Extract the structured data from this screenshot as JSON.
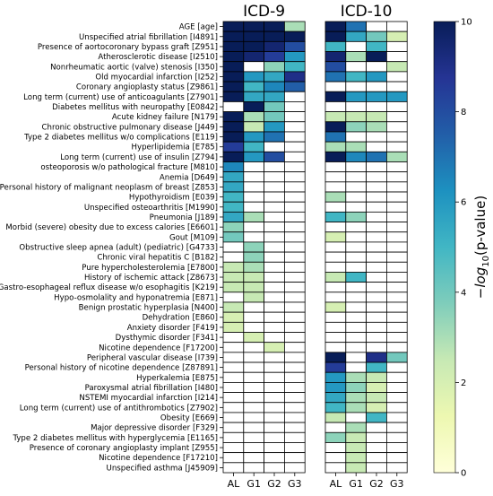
{
  "chart_data": {
    "type": "heatmap",
    "panels": [
      {
        "title": "ICD-9",
        "columns": [
          "AL",
          "G1",
          "G2",
          "G3"
        ]
      },
      {
        "title": "ICD-10",
        "columns": [
          "AL",
          "G1",
          "G2",
          "G3"
        ]
      }
    ],
    "colorbar": {
      "label": "−log10(p-value)",
      "label_main": "−log",
      "label_sub": "10",
      "label_tail": "(p-value)",
      "min": 0,
      "max": 10,
      "ticks": [
        "0",
        "2",
        "4",
        "6",
        "8",
        "10"
      ],
      "colormap": "YlGnBu"
    },
    "rows": [
      {
        "label": "AGE [age]",
        "icd9": [
          10,
          10,
          10,
          3
        ],
        "icd10": [
          10,
          7,
          0,
          0
        ]
      },
      {
        "label": "Unspecified atrial fibrillation [I4891]",
        "icd9": [
          10,
          10,
          10,
          10
        ],
        "icd10": [
          10,
          5.5,
          4,
          2
        ]
      },
      {
        "label": "Presence of aortocoronary bypass graft [Z951]",
        "icd9": [
          10,
          10,
          9.5,
          8
        ],
        "icd10": [
          5,
          0,
          5,
          0
        ]
      },
      {
        "label": "Atherosclerotic disease [I2510]",
        "icd9": [
          10,
          9.5,
          8.5,
          6
        ],
        "icd10": [
          9.5,
          3,
          10,
          0
        ]
      },
      {
        "label": "Nonrheumatic aortic (valve) stenosis [I350]",
        "icd9": [
          10,
          0,
          3.5,
          5
        ],
        "icd10": [
          8,
          0,
          0,
          2.5
        ]
      },
      {
        "label": "Old myocardial infarction [I252]",
        "icd9": [
          10,
          6,
          5.5,
          9
        ],
        "icd10": [
          7,
          5,
          6,
          0
        ]
      },
      {
        "label": "Coronary angioplasty status [Z9861]",
        "icd9": [
          10,
          5,
          6.5,
          7.5
        ],
        "icd10": [
          0,
          0,
          0,
          0
        ]
      },
      {
        "label": "Long term (current) use of anticoagulants [Z7901]",
        "icd9": [
          10,
          5.5,
          5.5,
          0
        ],
        "icd10": [
          10,
          6,
          6,
          6
        ]
      },
      {
        "label": "Diabetes mellitus with neuropathy [E0842]",
        "icd9": [
          0,
          10,
          4,
          0
        ],
        "icd10": [
          0,
          0,
          0,
          0
        ]
      },
      {
        "label": "Acute kidney failure [N179]",
        "icd9": [
          10,
          3,
          4,
          0
        ],
        "icd10": [
          2.5,
          2.5,
          2.5,
          0
        ]
      },
      {
        "label": "Chronic obstructive pulmonary disease [J449]",
        "icd9": [
          10,
          2.5,
          6,
          0
        ],
        "icd10": [
          10,
          3.5,
          3,
          0
        ]
      },
      {
        "label": "Type 2 diabetes mellitus w/o complications [E119]",
        "icd9": [
          10,
          6,
          7,
          0
        ],
        "icd10": [
          7,
          0,
          0,
          0
        ]
      },
      {
        "label": "Hyperlipidemia [E785]",
        "icd9": [
          8.5,
          5,
          0,
          0
        ],
        "icd10": [
          3,
          3,
          0,
          0
        ]
      },
      {
        "label": "Long term (current) use of insulin [Z794]",
        "icd9": [
          10,
          6,
          8,
          0
        ],
        "icd10": [
          10,
          6.5,
          7,
          3
        ]
      },
      {
        "label": "osteoporosis w/o pathological fracture [M810]",
        "icd9": [
          6.5,
          0,
          0,
          0
        ],
        "icd10": [
          0,
          0,
          0,
          0
        ]
      },
      {
        "label": "Anemia [D649]",
        "icd9": [
          5.5,
          0,
          0,
          0
        ],
        "icd10": [
          0,
          0,
          0,
          0
        ]
      },
      {
        "label": "Personal history of malignant neoplasm of breast [Z853]",
        "icd9": [
          5.5,
          0,
          0,
          0
        ],
        "icd10": [
          0,
          0,
          0,
          0
        ]
      },
      {
        "label": "Hypothyroidism [E039]",
        "icd9": [
          5,
          0,
          0,
          0
        ],
        "icd10": [
          3,
          0,
          0,
          0
        ]
      },
      {
        "label": "Unspecified osteoarthritis [M1990]",
        "icd9": [
          5,
          0,
          0,
          0
        ],
        "icd10": [
          0,
          0,
          0,
          0
        ]
      },
      {
        "label": "Pneumonia [J189]",
        "icd9": [
          5.5,
          3,
          0,
          0
        ],
        "icd10": [
          5,
          3.5,
          0,
          0
        ]
      },
      {
        "label": "Morbid (severe) obesity due to excess calories [E6601]",
        "icd9": [
          3.5,
          0,
          0,
          0
        ],
        "icd10": [
          0,
          0,
          0,
          0
        ]
      },
      {
        "label": "Gout [M109]",
        "icd9": [
          4,
          0,
          0,
          0
        ],
        "icd10": [
          2,
          0,
          0,
          0
        ]
      },
      {
        "label": "Obstructive sleep apnea (adult) (pediatric) [G4733]",
        "icd9": [
          0,
          3.5,
          0,
          0
        ],
        "icd10": [
          0,
          0,
          0,
          0
        ]
      },
      {
        "label": "Chronic viral hepatitis C [B182]",
        "icd9": [
          0,
          3.5,
          0,
          0
        ],
        "icd10": [
          0,
          0,
          0,
          0
        ]
      },
      {
        "label": "Pure hypercholesterolemia [E7800]",
        "icd9": [
          2.5,
          3,
          0,
          0
        ],
        "icd10": [
          0,
          0,
          0,
          0
        ]
      },
      {
        "label": "History of ischemic attack [Z8673]",
        "icd9": [
          2.5,
          2.5,
          0,
          0
        ],
        "icd10": [
          2.5,
          5,
          0,
          0
        ]
      },
      {
        "label": "Gastro-esophageal reflux disease w/o esophagitis [K219]",
        "icd9": [
          2.5,
          2.5,
          0,
          0
        ],
        "icd10": [
          0,
          0,
          0,
          0
        ]
      },
      {
        "label": "Hypo-osmolality and hyponatremia [E871]",
        "icd9": [
          0,
          2.5,
          0,
          0
        ],
        "icd10": [
          0,
          0,
          0,
          0
        ]
      },
      {
        "label": "Benign prostatic hyperplasia [N400]",
        "icd9": [
          2.5,
          0,
          0,
          0
        ],
        "icd10": [
          2,
          0,
          0,
          0
        ]
      },
      {
        "label": "Dehydration [E860]",
        "icd9": [
          2,
          0,
          0,
          0
        ],
        "icd10": [
          0,
          0,
          0,
          0
        ]
      },
      {
        "label": "Anxiety disorder [F419]",
        "icd9": [
          2,
          0,
          0,
          0
        ],
        "icd10": [
          0,
          0,
          0,
          0
        ]
      },
      {
        "label": "Dysthymic disorder [F341]",
        "icd9": [
          0,
          2,
          0,
          0
        ],
        "icd10": [
          0,
          0,
          0,
          0
        ]
      },
      {
        "label": "Nicotine dependence [F17200]",
        "icd9": [
          0,
          0,
          2,
          0
        ],
        "icd10": [
          0,
          0,
          0,
          0
        ]
      },
      {
        "label": "Peripheral vascular disease [I739]",
        "icd9": [
          0,
          0,
          0,
          0
        ],
        "icd10": [
          10,
          0,
          9,
          4
        ]
      },
      {
        "label": "Personal history of nicotine dependence [Z87891]",
        "icd9": [
          0,
          0,
          0,
          0
        ],
        "icd10": [
          8.5,
          0,
          5,
          0
        ]
      },
      {
        "label": "Hyperkalemia [E875]",
        "icd9": [
          0,
          0,
          0,
          0
        ],
        "icd10": [
          6,
          3,
          2.5,
          0
        ]
      },
      {
        "label": "Paroxysmal atrial fibrillation [I480]",
        "icd9": [
          0,
          0,
          0,
          0
        ],
        "icd10": [
          6,
          3.5,
          2,
          0
        ]
      },
      {
        "label": "NSTEMI myocardial infarction [I214]",
        "icd9": [
          0,
          0,
          0,
          0
        ],
        "icd10": [
          5.5,
          3,
          2.5,
          0
        ]
      },
      {
        "label": "Long term (current) use of antithrombotics [Z7902]",
        "icd9": [
          0,
          0,
          0,
          0
        ],
        "icd10": [
          5,
          3,
          2,
          0
        ]
      },
      {
        "label": "Obesity [E669]",
        "icd9": [
          0,
          0,
          0,
          0
        ],
        "icd10": [
          2.5,
          0,
          5,
          0
        ]
      },
      {
        "label": "Major depressive disorder [F329]",
        "icd9": [
          0,
          0,
          0,
          0
        ],
        "icd10": [
          0,
          3,
          0,
          0
        ]
      },
      {
        "label": "Type 2 diabetes mellitus with hyperglycemia [E1165]",
        "icd9": [
          0,
          0,
          0,
          0
        ],
        "icd10": [
          3.5,
          2.5,
          0,
          0
        ]
      },
      {
        "label": "Presence of coronary angioplasty implant [Z955]",
        "icd9": [
          0,
          0,
          0,
          0
        ],
        "icd10": [
          0,
          2.5,
          0,
          0
        ]
      },
      {
        "label": "Nicotine dependence [F17210]",
        "icd9": [
          0,
          0,
          0,
          0
        ],
        "icd10": [
          0,
          2.5,
          0,
          0
        ]
      },
      {
        "label": "Unspecified asthma [J45909]",
        "icd9": [
          0,
          0,
          0,
          0
        ],
        "icd10": [
          0,
          2.5,
          0,
          0
        ]
      }
    ]
  }
}
